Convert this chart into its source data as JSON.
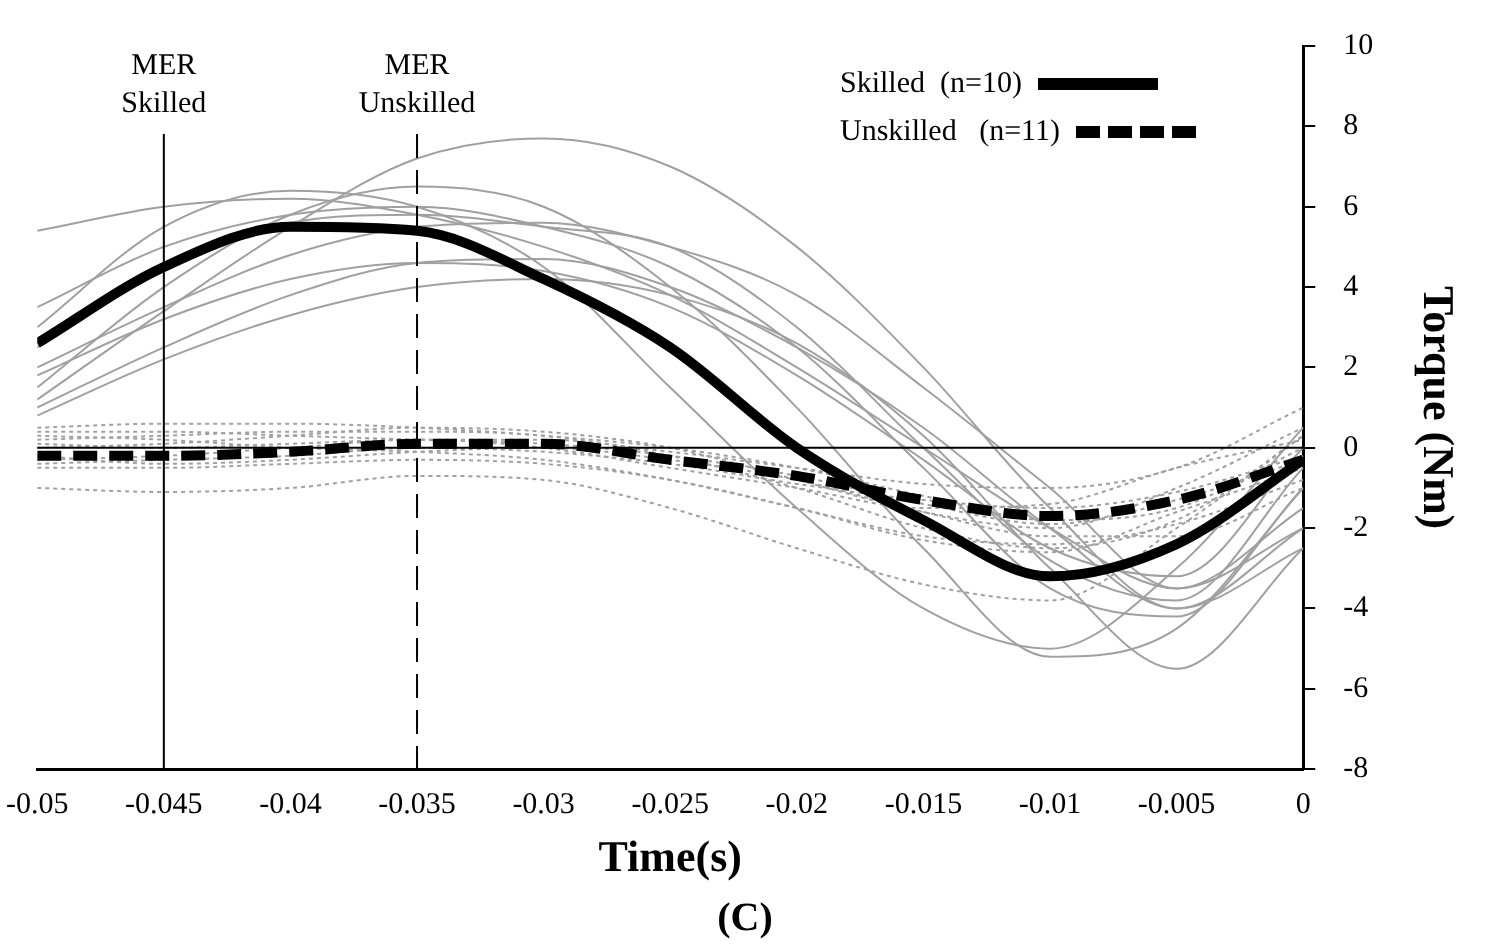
{
  "chart_data": {
    "type": "line",
    "xlabel": "Time(s)",
    "ylabel": "Torque (Nm)",
    "annotations": [
      "(C)"
    ],
    "x": [
      -0.05,
      -0.045,
      -0.04,
      -0.035,
      -0.03,
      -0.025,
      -0.02,
      -0.015,
      -0.01,
      -0.005,
      0
    ],
    "xlim": [
      -0.05,
      0
    ],
    "xticks": [
      -0.05,
      -0.045,
      -0.04,
      -0.035,
      -0.03,
      -0.025,
      -0.02,
      -0.015,
      -0.01,
      -0.005,
      0
    ],
    "ylim": [
      -8,
      10
    ],
    "yticks": [
      -8,
      -6,
      -4,
      -2,
      0,
      2,
      4,
      6,
      8,
      10
    ],
    "grid": false,
    "legend": "top right",
    "marker": "none",
    "ref_lines": [
      {
        "axis": "x",
        "value": -0.045,
        "label": "MER\nSkilled",
        "color": "#000000",
        "line_style": "solid"
      },
      {
        "axis": "x",
        "value": -0.035,
        "label": "MER\nUnskilled",
        "color": "#000000",
        "line_style": "dashed"
      },
      {
        "axis": "y",
        "value": 0,
        "color": "#000000",
        "line_style": "solid"
      }
    ],
    "series": [
      {
        "color": "#a0a0a0",
        "line_style": "solid",
        "values": [
          5.4,
          6.0,
          6.2,
          5.8,
          5.0,
          3.8,
          2.0,
          0,
          -2.0,
          -3.5,
          -2.0
        ]
      },
      {
        "color": "#a0a0a0",
        "line_style": "solid",
        "values": [
          1.2,
          3.4,
          5.5,
          7.2,
          7.7,
          7.0,
          5.0,
          2.0,
          -1.5,
          -4.0,
          -2.5
        ]
      },
      {
        "color": "#a0a0a0",
        "line_style": "solid",
        "values": [
          1.5,
          4.0,
          5.8,
          6.5,
          6.0,
          4.0,
          1.0,
          -2.5,
          -5.2,
          -4.5,
          -1.0
        ]
      },
      {
        "color": "#a0a0a0",
        "line_style": "solid",
        "values": [
          3.0,
          5.5,
          6.4,
          6.0,
          4.5,
          1.5,
          -1.5,
          -4.0,
          -5.0,
          -3.0,
          0.5
        ]
      },
      {
        "color": "#a0a0a0",
        "line_style": "solid",
        "values": [
          2.0,
          3.5,
          4.8,
          5.5,
          5.6,
          5.0,
          3.8,
          1.5,
          -1.0,
          -3.5,
          -1.5
        ]
      },
      {
        "color": "#a0a0a0",
        "line_style": "solid",
        "values": [
          1.0,
          2.5,
          3.8,
          4.6,
          4.7,
          4.0,
          2.5,
          0.5,
          -2.0,
          -4.0,
          -2.0
        ]
      },
      {
        "color": "#a0a0a0",
        "line_style": "solid",
        "values": [
          0.8,
          2.2,
          3.3,
          4.0,
          4.2,
          3.8,
          2.6,
          0.3,
          -3.0,
          -5.5,
          -2.5
        ]
      },
      {
        "color": "#a0a0a0",
        "line_style": "solid",
        "values": [
          3.5,
          5.0,
          5.8,
          6.0,
          5.5,
          4.5,
          2.5,
          -0.5,
          -3.5,
          -4.2,
          -1.0
        ]
      },
      {
        "color": "#a0a0a0",
        "line_style": "solid",
        "values": [
          2.5,
          4.5,
          5.6,
          5.8,
          5.5,
          5.0,
          3.0,
          0.0,
          -2.8,
          -3.8,
          -0.5
        ]
      },
      {
        "color": "#a0a0a0",
        "line_style": "solid",
        "values": [
          1.8,
          3.2,
          4.2,
          4.6,
          4.4,
          3.5,
          1.8,
          -0.3,
          -2.5,
          -3.2,
          0.0
        ]
      },
      {
        "color": "#a0a0a0",
        "line_style": "dotted",
        "values": [
          0.5,
          0.6,
          0.6,
          0.5,
          0.3,
          0.0,
          -0.5,
          -1.2,
          -1.8,
          -1.5,
          0.0
        ]
      },
      {
        "color": "#a0a0a0",
        "line_style": "dotted",
        "values": [
          0.2,
          0.3,
          0.4,
          0.4,
          0.3,
          -0.2,
          -1.0,
          -2.0,
          -2.5,
          -1.8,
          0.3
        ]
      },
      {
        "color": "#a0a0a0",
        "line_style": "dotted",
        "values": [
          -0.5,
          -0.5,
          -0.4,
          -0.3,
          -0.4,
          -0.8,
          -1.5,
          -2.3,
          -2.6,
          -1.6,
          -0.5
        ]
      },
      {
        "color": "#a0a0a0",
        "line_style": "dotted",
        "values": [
          -1.0,
          -1.1,
          -1.0,
          -0.7,
          -0.8,
          -1.5,
          -2.5,
          -3.4,
          -3.8,
          -2.0,
          0.3
        ]
      },
      {
        "color": "#a0a0a0",
        "line_style": "dotted",
        "values": [
          0.0,
          0.1,
          0.3,
          0.5,
          0.4,
          0.0,
          -0.8,
          -1.6,
          -2.0,
          -1.0,
          0.5
        ]
      },
      {
        "color": "#a0a0a0",
        "line_style": "dotted",
        "values": [
          -0.3,
          -0.2,
          0.0,
          0.2,
          0.0,
          -0.5,
          -1.0,
          -1.5,
          -1.4,
          -0.5,
          0.2
        ]
      },
      {
        "color": "#a0a0a0",
        "line_style": "dotted",
        "values": [
          0.3,
          0.2,
          0.0,
          -0.1,
          -0.3,
          -0.8,
          -1.5,
          -2.2,
          -2.4,
          -1.9,
          -0.8
        ]
      },
      {
        "color": "#a0a0a0",
        "line_style": "dotted",
        "values": [
          -0.4,
          -0.3,
          -0.2,
          0.0,
          -0.1,
          -0.4,
          -0.9,
          -1.3,
          -1.5,
          -1.1,
          -0.2
        ]
      },
      {
        "color": "#a0a0a0",
        "line_style": "dotted",
        "values": [
          0.1,
          0.0,
          0.1,
          0.2,
          0.2,
          -0.1,
          -0.5,
          -0.9,
          -1.0,
          -0.5,
          1.0
        ]
      },
      {
        "color": "#a0a0a0",
        "line_style": "dotted",
        "values": [
          -0.2,
          -0.4,
          -0.3,
          -0.1,
          0.0,
          -0.3,
          -0.8,
          -1.6,
          -2.2,
          -2.2,
          -1.0
        ]
      },
      {
        "color": "#a0a0a0",
        "line_style": "dotted",
        "values": [
          0.4,
          0.4,
          0.3,
          0.2,
          0.1,
          -0.2,
          -0.7,
          -1.4,
          -1.9,
          -1.3,
          -0.3
        ]
      },
      {
        "name": "Skilled  (n=10)",
        "color": "#000000",
        "line_style": "solid",
        "values": [
          2.6,
          4.5,
          5.5,
          5.4,
          4.2,
          2.5,
          0.0,
          -1.8,
          -3.2,
          -2.4,
          -0.3
        ]
      },
      {
        "name": "Unskilled   (n=11)",
        "color": "#000000",
        "line_style": "dashed",
        "values": [
          -0.2,
          -0.2,
          -0.1,
          0.1,
          0.1,
          -0.3,
          -0.7,
          -1.3,
          -1.7,
          -1.3,
          -0.3
        ]
      }
    ]
  }
}
